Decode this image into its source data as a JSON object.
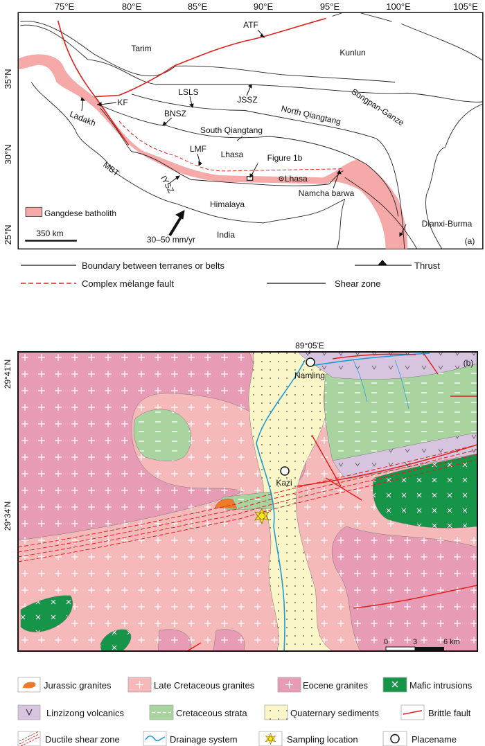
{
  "colors": {
    "gangdese": "#f5a9a9",
    "late_cretaceous": "#f6b9b9",
    "eocene": "#e89bb4",
    "mafic": "#169447",
    "linzizong": "#d7c4de",
    "cretaceous_strata": "#a9d4a0",
    "quaternary": "#fbf6c8",
    "jurassic": "#ef7a2c",
    "fault_red": "#e0201b",
    "drainage": "#1b9bd7"
  },
  "panel_a": {
    "lon_ticks": [
      "75°E",
      "80°E",
      "85°E",
      "90°E",
      "95°E",
      "100°E",
      "105°E"
    ],
    "lat_ticks": [
      "35°N",
      "30°N",
      "25°N"
    ],
    "labels": {
      "atf": "ATF",
      "tarim": "Tarim",
      "kunlun": "Kunlun",
      "lsls": "LSLS",
      "jssz": "JSSZ",
      "kf": "KF",
      "ladakh": "Ladakh",
      "bnsz": "BNSZ",
      "north_qiangtang": "North Qiangtang",
      "songpan_ganze": "Songpan-Ganze",
      "south_qiangtang": "South Qiangtang",
      "lmf": "LMF",
      "lhasa_terrane": "Lhasa",
      "figure_1b": "Figure 1b",
      "lhasa_city": "Lhasa",
      "mbt": "MBT",
      "iysz": "IYSZ",
      "namcha_barwa": "Namcha barwa",
      "himalaya": "Himalaya",
      "india": "India",
      "rate": "30–50 mm/yr",
      "dianxi_burma": "Dianxi-Burma",
      "scale": "350 km",
      "panel_tag": "(a)",
      "gangdese": "Gangdese batholith"
    },
    "legend": {
      "boundary": "Boundary between terranes or belts",
      "thrust": "Thrust",
      "melange": "Complex mèlange fault",
      "shear": "Shear zone"
    }
  },
  "panel_b": {
    "lon_tick": "89°05'E",
    "lat_ticks": [
      "29°41'N",
      "29°34'N"
    ],
    "places": {
      "namling": "Namling",
      "kazi": "Kazi"
    },
    "panel_tag": "(b)",
    "scale": {
      "zero": "0",
      "mid": "3",
      "end": "6 km"
    },
    "legend": [
      {
        "key": "jurassic",
        "label": "Jurassic granites"
      },
      {
        "key": "late_cretaceous",
        "label": "Late Cretaceous granites"
      },
      {
        "key": "eocene",
        "label": "Eocene granites"
      },
      {
        "key": "mafic",
        "label": "Mafic intrusions"
      },
      {
        "key": "linzizong",
        "label": "Linzizong volcanics"
      },
      {
        "key": "cretaceous_strata",
        "label": "Cretaceous strata"
      },
      {
        "key": "quaternary",
        "label": "Quaternary sediments"
      },
      {
        "key": "brittle_fault",
        "label": "Brittle fault"
      },
      {
        "key": "ductile",
        "label": "Ductile shear zone"
      },
      {
        "key": "drainage",
        "label": "Drainage system"
      },
      {
        "key": "sampling",
        "label": "Sampling location"
      },
      {
        "key": "placename",
        "label": "Placename"
      }
    ]
  }
}
